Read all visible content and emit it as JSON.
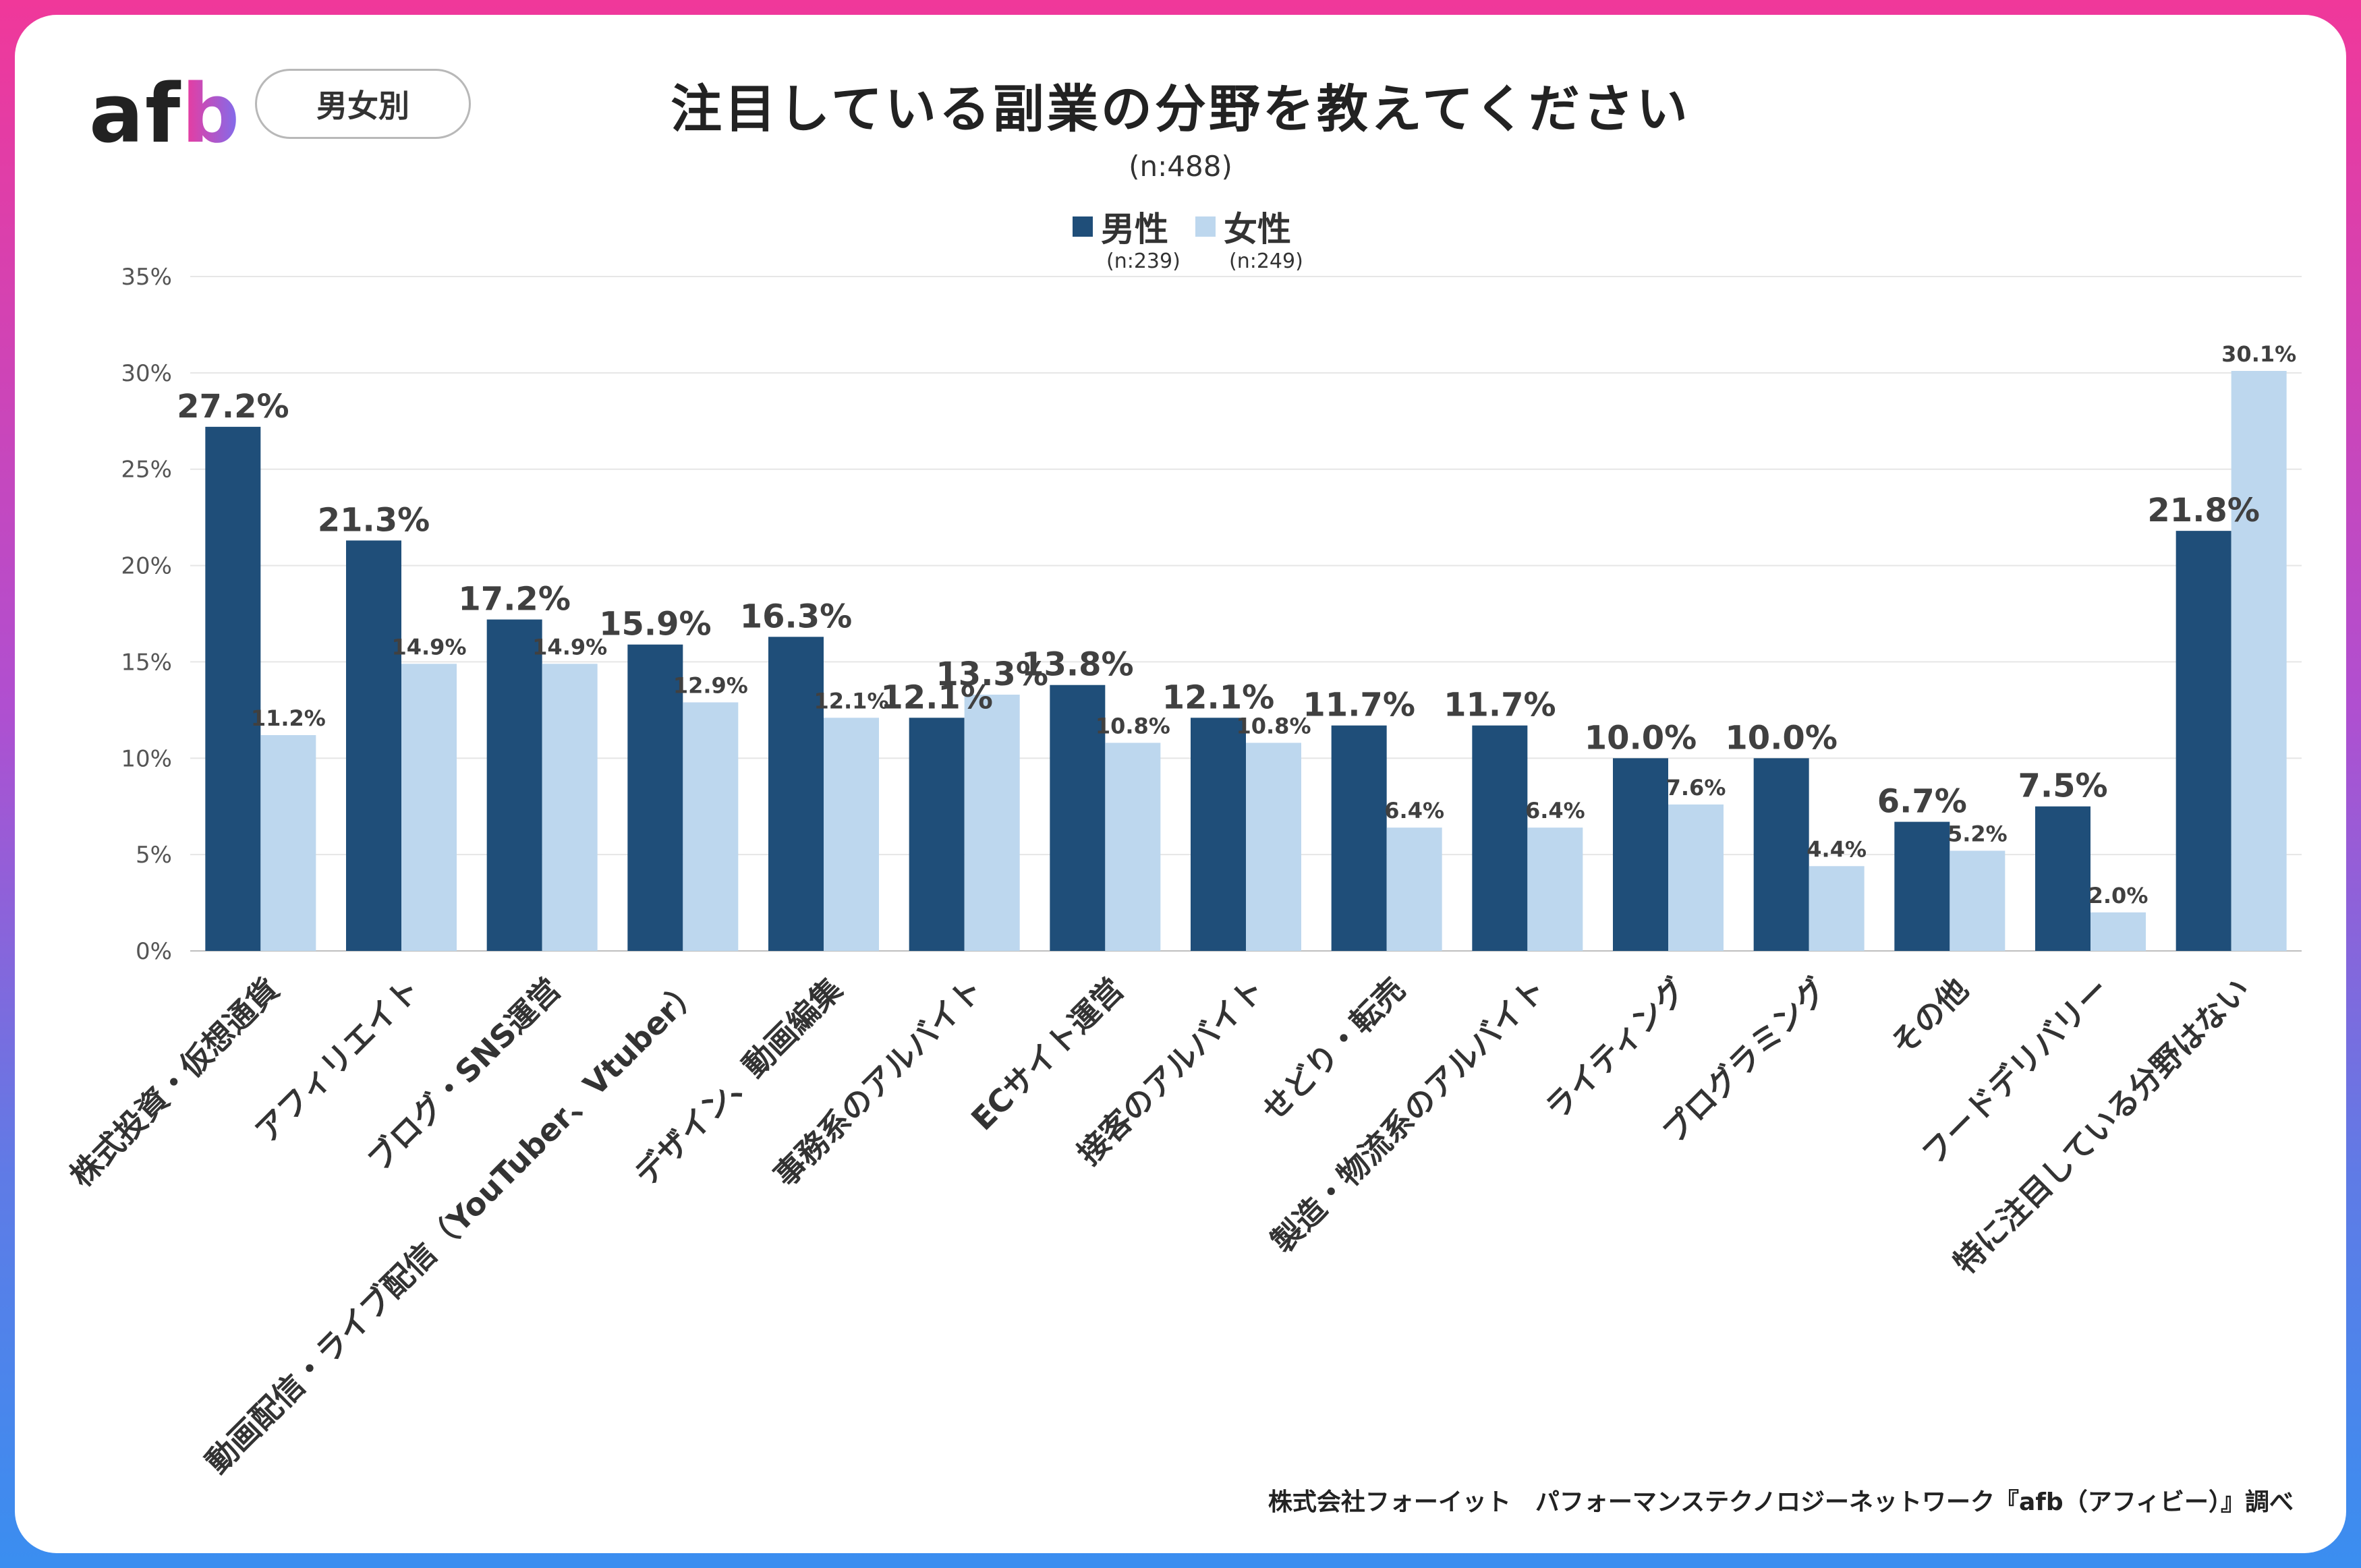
{
  "header": {
    "logo_text": "afb",
    "filter_pill": "男女別",
    "title": "注目している副業の分野を教えてください",
    "subtitle": "(n:488)"
  },
  "legend": {
    "male_label": "男性",
    "male_n": "(n:239)",
    "female_label": "女性",
    "female_n": "(n:249)"
  },
  "colors": {
    "male": "#1f4e79",
    "female": "#bdd7ee",
    "highlight_label": "#6b9bd1",
    "grid": "#e6e6e6"
  },
  "footer": "株式会社フォーイット　パフォーマンステクノロジーネットワーク『afb（アフィビー）』調べ",
  "chart_data": {
    "type": "bar",
    "title": "注目している副業の分野を教えてください",
    "ylim": [
      0,
      35
    ],
    "yticks": [
      "0%",
      "5%",
      "10%",
      "15%",
      "20%",
      "25%",
      "30%",
      "35%"
    ],
    "categories": [
      "株式投資・仮想通貨",
      "アフィリエイト",
      "ブログ・SNS運営",
      "動画配信・ライブ配信（YouTuber、Vtuber）",
      "デザイン、動画編集",
      "事務系のアルバイト",
      "ECサイト運営",
      "接客のアルバイト",
      "せどり・転売",
      "製造・物流系のアルバイト",
      "ライティング",
      "プログラミング",
      "その他",
      "フードデリバリー",
      "特に注目している分野はない"
    ],
    "series": [
      {
        "name": "男性",
        "values": [
          27.2,
          21.3,
          17.2,
          15.9,
          16.3,
          12.1,
          13.8,
          12.1,
          11.7,
          11.7,
          10.0,
          10.0,
          6.7,
          7.5,
          21.8
        ],
        "labels": [
          "27.2%",
          "21.3%",
          "17.2%",
          "15.9%",
          "16.3%",
          "12.1%",
          "13.8%",
          "12.1%",
          "11.7%",
          "11.7%",
          "10.0%",
          "10.0%",
          "6.7%",
          "7.5%",
          "21.8%"
        ]
      },
      {
        "name": "女性",
        "values": [
          11.2,
          14.9,
          14.9,
          12.9,
          12.1,
          13.3,
          10.8,
          10.8,
          6.4,
          6.4,
          7.6,
          4.4,
          5.2,
          2.0,
          30.1
        ],
        "labels": [
          "11.2%",
          "14.9%",
          "14.9%",
          "12.9%",
          "12.1%",
          "13.3%",
          "10.8%",
          "10.8%",
          "6.4%",
          "6.4%",
          "7.6%",
          "4.4%",
          "5.2%",
          "2.0%",
          "30.1%"
        ]
      }
    ]
  }
}
